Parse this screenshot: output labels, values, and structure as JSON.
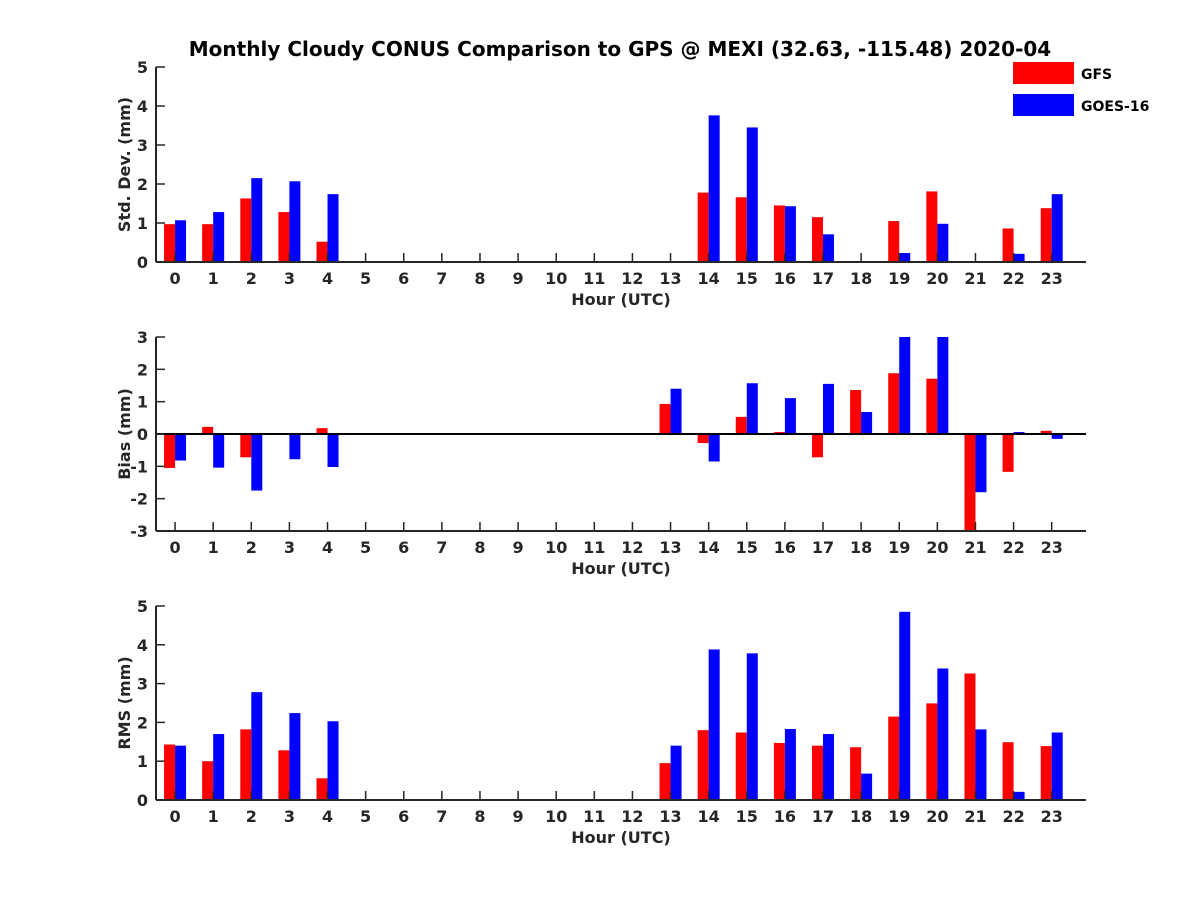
{
  "chart_data": {
    "type": "bar",
    "title": "Monthly Cloudy CONUS Comparison to GPS @ MEXI (32.63, -115.48) 2020-04",
    "categories": [
      "0",
      "1",
      "2",
      "3",
      "4",
      "5",
      "6",
      "7",
      "8",
      "9",
      "10",
      "11",
      "12",
      "13",
      "14",
      "15",
      "16",
      "17",
      "18",
      "19",
      "20",
      "21",
      "22",
      "23"
    ],
    "legend": {
      "placement": "top-right",
      "entries": [
        {
          "name": "GFS",
          "color": "#ff0000"
        },
        {
          "name": "GOES-16",
          "color": "#0000ff"
        }
      ]
    },
    "panels": [
      {
        "ylabel": "Std. Dev. (mm)",
        "xlabel": "Hour (UTC)",
        "ylim": [
          0,
          5
        ],
        "yticks": [
          "0",
          "1",
          "2",
          "3",
          "4",
          "5"
        ],
        "series": [
          {
            "name": "GFS",
            "color": "#ff0000",
            "values": [
              0.97,
              0.97,
              1.63,
              1.28,
              0.52,
              null,
              null,
              null,
              null,
              null,
              null,
              null,
              null,
              null,
              1.78,
              1.66,
              1.45,
              1.15,
              null,
              1.05,
              1.81,
              null,
              0.86,
              1.38
            ]
          },
          {
            "name": "GOES-16",
            "color": "#0000ff",
            "values": [
              1.07,
              1.28,
              2.15,
              2.07,
              1.74,
              null,
              null,
              null,
              null,
              null,
              null,
              null,
              null,
              null,
              3.76,
              3.45,
              1.43,
              0.71,
              null,
              0.23,
              0.98,
              null,
              0.21,
              1.74
            ]
          }
        ]
      },
      {
        "ylabel": "Bias (mm)",
        "xlabel": "Hour (UTC)",
        "ylim": [
          -3,
          3
        ],
        "yticks": [
          "-3",
          "-2",
          "-1",
          "0",
          "1",
          "2",
          "3"
        ],
        "series": [
          {
            "name": "GFS",
            "color": "#ff0000",
            "values": [
              -1.05,
              0.22,
              -0.72,
              -0.03,
              0.18,
              null,
              null,
              null,
              null,
              null,
              null,
              null,
              null,
              0.93,
              -0.28,
              0.53,
              0.06,
              -0.72,
              1.36,
              1.88,
              1.71,
              -3.0,
              -1.17,
              0.1
            ]
          },
          {
            "name": "GOES-16",
            "color": "#0000ff",
            "values": [
              -0.82,
              -1.04,
              -1.75,
              -0.78,
              -1.02,
              null,
              null,
              null,
              null,
              null,
              null,
              null,
              null,
              1.4,
              -0.85,
              1.57,
              1.11,
              1.55,
              0.68,
              3.0,
              3.0,
              -1.8,
              0.06,
              -0.15
            ]
          }
        ]
      },
      {
        "ylabel": "RMS (mm)",
        "xlabel": "Hour (UTC)",
        "ylim": [
          0,
          5
        ],
        "yticks": [
          "0",
          "1",
          "2",
          "3",
          "4",
          "5"
        ],
        "series": [
          {
            "name": "GFS",
            "color": "#ff0000",
            "values": [
              1.43,
              1.0,
              1.82,
              1.28,
              0.56,
              null,
              null,
              null,
              null,
              null,
              null,
              null,
              null,
              0.95,
              1.8,
              1.74,
              1.47,
              1.4,
              1.36,
              2.15,
              2.49,
              3.26,
              1.49,
              1.39
            ]
          },
          {
            "name": "GOES-16",
            "color": "#0000ff",
            "values": [
              1.4,
              1.7,
              2.78,
              2.24,
              2.03,
              null,
              null,
              null,
              null,
              null,
              null,
              null,
              null,
              1.4,
              3.88,
              3.78,
              1.83,
              1.7,
              0.68,
              4.85,
              3.39,
              1.82,
              0.21,
              1.74
            ]
          }
        ]
      }
    ]
  }
}
